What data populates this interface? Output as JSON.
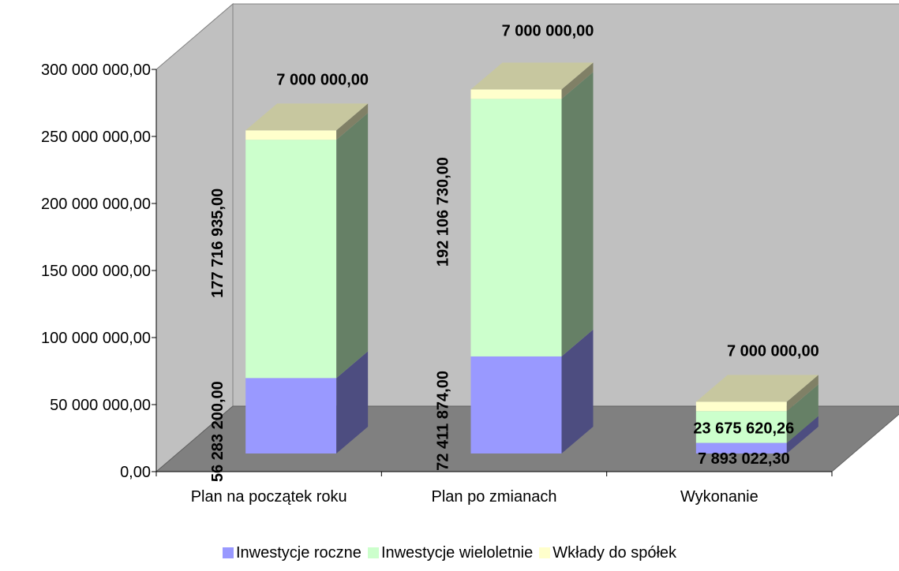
{
  "chart_data": {
    "type": "bar",
    "stacked": true,
    "three_d": true,
    "categories": [
      "Plan na początek roku",
      "Plan po zmianach",
      "Wykonanie"
    ],
    "series": [
      {
        "name": "Inwestycje roczne",
        "color": "#9999ff",
        "values": [
          56283200.0,
          72411874.0,
          7893022.3
        ],
        "labels": [
          "56 283 200,00",
          "72 411 874,00",
          "7 893 022,30"
        ]
      },
      {
        "name": "Inwestycje wieloletnie",
        "color": "#ccffcc",
        "values": [
          177716935.0,
          192106730.0,
          23675620.26
        ],
        "labels": [
          "177 716 935,00",
          "192 106 730,00",
          "23 675 620,26"
        ]
      },
      {
        "name": "Wkłady do spółek",
        "color": "#ffffcc",
        "values": [
          7000000.0,
          7000000.0,
          7000000.0
        ],
        "labels": [
          "7 000 000,00",
          "7 000 000,00",
          "7 000 000,00"
        ]
      }
    ],
    "ylim": [
      0,
      300000000
    ],
    "yticks": [
      0,
      50000000,
      100000000,
      150000000,
      200000000,
      250000000,
      300000000
    ],
    "ytick_labels": [
      "0,00",
      "50 000 000,00",
      "100 000 000,00",
      "150 000 000,00",
      "200 000 000,00",
      "250 000 000,00",
      "300 000 000,00"
    ],
    "grid": false,
    "legend_position": "bottom",
    "colors": {
      "back_wall": "#c0c0c0",
      "floor": "#808080"
    }
  }
}
